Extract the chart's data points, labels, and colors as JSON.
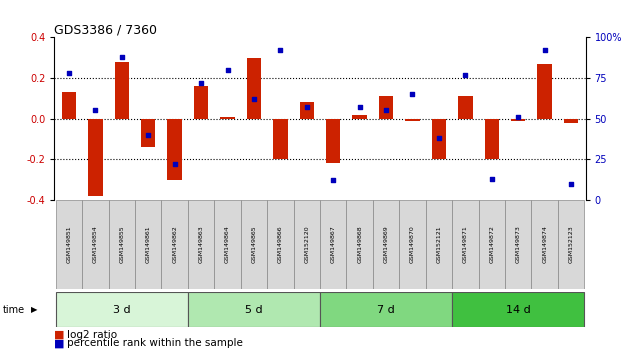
{
  "title": "GDS3386 / 7360",
  "samples": [
    "GSM149851",
    "GSM149854",
    "GSM149855",
    "GSM149861",
    "GSM149862",
    "GSM149863",
    "GSM149864",
    "GSM149865",
    "GSM149866",
    "GSM152120",
    "GSM149867",
    "GSM149868",
    "GSM149869",
    "GSM149870",
    "GSM152121",
    "GSM149871",
    "GSM149872",
    "GSM149873",
    "GSM149874",
    "GSM152123"
  ],
  "log2_ratio": [
    0.13,
    -0.38,
    0.28,
    -0.14,
    -0.3,
    0.16,
    0.01,
    0.3,
    -0.2,
    0.08,
    -0.22,
    0.02,
    0.11,
    -0.01,
    -0.2,
    0.11,
    -0.2,
    -0.01,
    0.27,
    -0.02
  ],
  "percentile_rank": [
    78,
    55,
    88,
    40,
    22,
    72,
    80,
    62,
    92,
    57,
    12,
    57,
    55,
    65,
    38,
    77,
    13,
    51,
    92,
    10
  ],
  "groups": [
    {
      "label": "3 d",
      "start": 0,
      "end": 5,
      "color": "#d8f5d8"
    },
    {
      "label": "5 d",
      "start": 5,
      "end": 10,
      "color": "#b0e8b0"
    },
    {
      "label": "7 d",
      "start": 10,
      "end": 15,
      "color": "#80d880"
    },
    {
      "label": "14 d",
      "start": 15,
      "end": 20,
      "color": "#40c040"
    }
  ],
  "bar_color": "#cc2200",
  "dot_color": "#0000bb",
  "ylim": [
    -0.4,
    0.4
  ],
  "y2lim": [
    0,
    100
  ],
  "yticks_left": [
    -0.4,
    -0.2,
    0.0,
    0.2,
    0.4
  ],
  "yticks_right": [
    0,
    25,
    50,
    75,
    100
  ],
  "ytick_labels_right": [
    "0",
    "25",
    "50",
    "75",
    "100%"
  ],
  "grid_color": "black",
  "hline_color": "#cc0000",
  "grid_lines": [
    -0.2,
    0.0,
    0.2
  ],
  "legend_red": "log2 ratio",
  "legend_blue": "percentile rank within the sample",
  "time_label": "time",
  "sample_box_color": "#d8d8d8",
  "sample_box_edge": "#888888"
}
